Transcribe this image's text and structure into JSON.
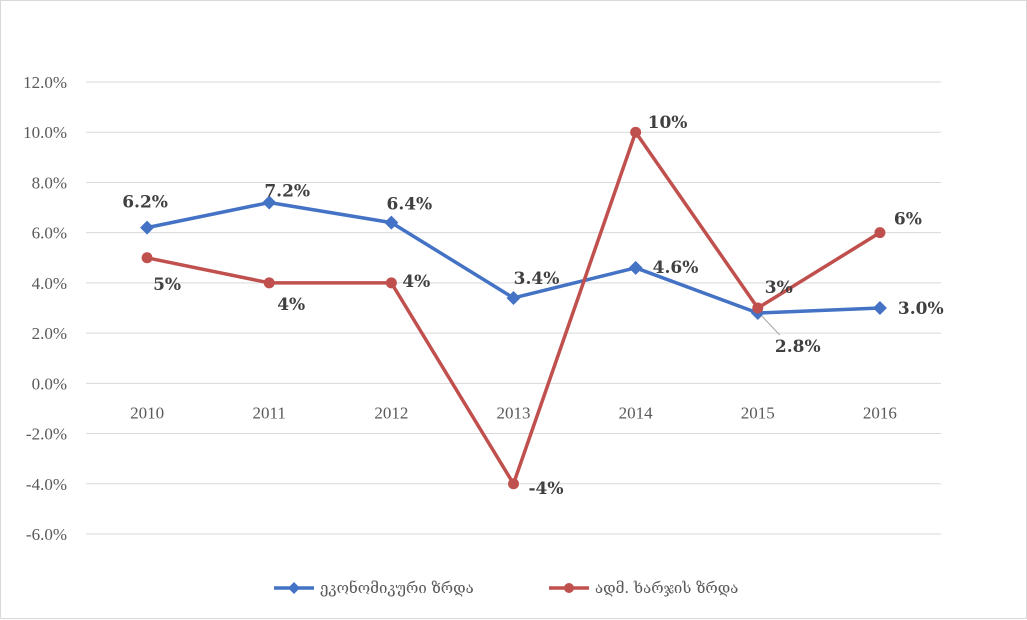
{
  "chart_data": {
    "type": "line",
    "categories": [
      "2010",
      "2011",
      "2012",
      "2013",
      "2014",
      "2015",
      "2016"
    ],
    "ylim": [
      -0.06,
      0.12
    ],
    "yticks": [
      -0.06,
      -0.04,
      -0.02,
      0.0,
      0.02,
      0.04,
      0.06,
      0.08,
      0.1,
      0.12
    ],
    "ytick_labels": [
      "-6.0%",
      "-4.0%",
      "-2.0%",
      "0.0%",
      "2.0%",
      "4.0%",
      "6.0%",
      "8.0%",
      "10.0%",
      "12.0%"
    ],
    "grid": true,
    "legend_position": "bottom",
    "series": [
      {
        "name": "ეკონომიკური ზრდა",
        "color": "#4472c4",
        "marker": "diamond",
        "values": [
          0.062,
          0.072,
          0.064,
          0.034,
          0.046,
          0.028,
          0.03
        ],
        "labels": [
          "6.2%",
          "7.2%",
          "6.4%",
          "3.4%",
          "4.6%",
          "2.8%",
          "3.0%"
        ]
      },
      {
        "name": "ადმ. ხარჯის ზრდა",
        "color": "#c0504d",
        "marker": "circle",
        "values": [
          0.05,
          0.04,
          0.04,
          -0.04,
          0.1,
          0.03,
          0.06
        ],
        "labels": [
          "5%",
          "4%",
          "4%",
          "-4%",
          "10%",
          "3%",
          "6%"
        ]
      }
    ]
  }
}
